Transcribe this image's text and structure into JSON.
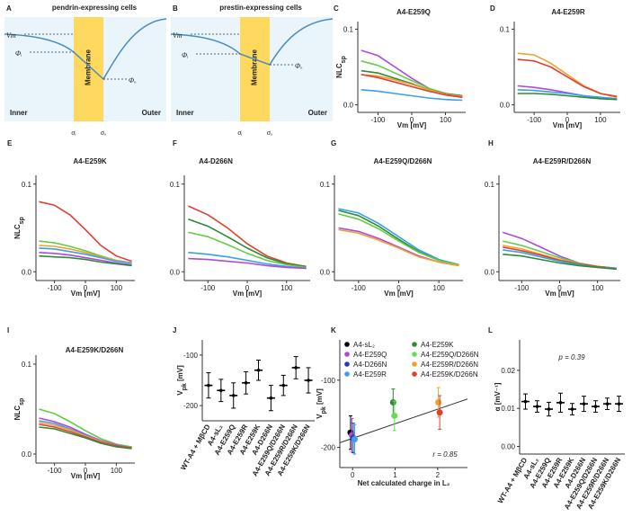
{
  "diagrams": [
    {
      "letter": "A",
      "title": "pendrin-expressing cells",
      "vm": "Vm",
      "phi_i": "Φᵢ",
      "phi_o": "Φₒ",
      "membrane": "Membrane",
      "inner": "Inner",
      "outer": "Outer",
      "sigma_i": "σᵢ",
      "sigma_o": "σₒ"
    },
    {
      "letter": "B",
      "title": "prestin-expressing cells",
      "vm": "Vm",
      "phi_i": "Φᵢ",
      "phi_o": "Φₒ",
      "membrane": "Membrane",
      "inner": "Inner",
      "outer": "Outer",
      "sigma_i": "σᵢ",
      "sigma_o": "σₒ"
    }
  ],
  "chart_data": [
    {
      "letter": "C",
      "type": "line",
      "title": "A4-E259Q",
      "ylabel": "NLC",
      "ylabel_sub": "sp",
      "xlabel": "Vm [mV]",
      "x": [
        -150,
        -100,
        -50,
        0,
        50,
        100,
        150
      ],
      "xlim": [
        -160,
        160
      ],
      "xticks": [
        -100,
        0,
        100
      ],
      "ylim": [
        -0.01,
        0.11
      ],
      "yticks": [
        {
          "value": 0,
          "label": "0.0"
        },
        {
          "value": 0.1,
          "label": "0.1"
        }
      ],
      "series": [
        {
          "color": "#b048e0",
          "values": [
            0.072,
            0.065,
            0.05,
            0.035,
            0.022,
            0.013,
            0.01
          ]
        },
        {
          "color": "#66cc44",
          "values": [
            0.058,
            0.052,
            0.042,
            0.032,
            0.022,
            0.015,
            0.012
          ]
        },
        {
          "color": "#2e8b3a",
          "values": [
            0.045,
            0.042,
            0.035,
            0.028,
            0.02,
            0.015,
            0.012
          ]
        },
        {
          "color": "#f0a030",
          "values": [
            0.04,
            0.038,
            0.033,
            0.027,
            0.02,
            0.014,
            0.011
          ]
        },
        {
          "color": "#e04030",
          "values": [
            0.04,
            0.036,
            0.03,
            0.024,
            0.018,
            0.013,
            0.01
          ]
        },
        {
          "color": "#3aa0e8",
          "values": [
            0.02,
            0.018,
            0.015,
            0.012,
            0.009,
            0.007,
            0.006
          ]
        }
      ]
    },
    {
      "letter": "D",
      "type": "line",
      "title": "A4-E259R",
      "xlabel": "Vm [mV]",
      "x": [
        -150,
        -100,
        -50,
        0,
        50,
        100,
        150
      ],
      "xlim": [
        -160,
        160
      ],
      "xticks": [
        -100,
        0,
        100
      ],
      "ylim": [
        -0.01,
        0.11
      ],
      "yticks": [
        {
          "value": 0,
          "label": "0.0"
        },
        {
          "value": 0.1,
          "label": "0.1"
        }
      ],
      "series": [
        {
          "color": "#f0a030",
          "values": [
            0.068,
            0.066,
            0.055,
            0.04,
            0.025,
            0.015,
            0.01
          ]
        },
        {
          "color": "#e04030",
          "values": [
            0.06,
            0.058,
            0.05,
            0.037,
            0.024,
            0.015,
            0.011
          ]
        },
        {
          "color": "#b048e0",
          "values": [
            0.025,
            0.023,
            0.02,
            0.016,
            0.012,
            0.009,
            0.007
          ]
        },
        {
          "color": "#3aa0e8",
          "values": [
            0.02,
            0.019,
            0.017,
            0.015,
            0.012,
            0.01,
            0.008
          ]
        },
        {
          "color": "#2e8b3a",
          "values": [
            0.015,
            0.015,
            0.014,
            0.012,
            0.01,
            0.008,
            0.007
          ]
        }
      ]
    },
    {
      "letter": "E",
      "type": "line",
      "title": "A4-E259K",
      "ylabel": "NLC",
      "ylabel_sub": "sp",
      "xlabel": "Vm [mV]",
      "x": [
        -150,
        -100,
        -50,
        0,
        50,
        100,
        150
      ],
      "xlim": [
        -160,
        160
      ],
      "xticks": [
        -100,
        0,
        100
      ],
      "ylim": [
        -0.01,
        0.11
      ],
      "yticks": [
        {
          "value": 0,
          "label": "0.0"
        },
        {
          "value": 0.1,
          "label": "0.1"
        }
      ],
      "series": [
        {
          "color": "#e04030",
          "values": [
            0.08,
            0.076,
            0.065,
            0.048,
            0.03,
            0.018,
            0.012
          ]
        },
        {
          "color": "#66cc44",
          "values": [
            0.035,
            0.033,
            0.029,
            0.024,
            0.018,
            0.013,
            0.01
          ]
        },
        {
          "color": "#f0a030",
          "values": [
            0.03,
            0.029,
            0.026,
            0.022,
            0.017,
            0.013,
            0.01
          ]
        },
        {
          "color": "#3aa0e8",
          "values": [
            0.027,
            0.026,
            0.023,
            0.02,
            0.016,
            0.012,
            0.01
          ]
        },
        {
          "color": "#b048e0",
          "values": [
            0.022,
            0.021,
            0.019,
            0.016,
            0.013,
            0.01,
            0.008
          ]
        },
        {
          "color": "#2e8b3a",
          "values": [
            0.018,
            0.017,
            0.016,
            0.014,
            0.011,
            0.009,
            0.007
          ]
        }
      ]
    },
    {
      "letter": "F",
      "type": "line",
      "title": "A4-D266N",
      "xlabel": "Vm [mV]",
      "x": [
        -150,
        -100,
        -50,
        0,
        50,
        100,
        150
      ],
      "xlim": [
        -160,
        160
      ],
      "xticks": [
        -100,
        0,
        100
      ],
      "ylim": [
        -0.01,
        0.11
      ],
      "yticks": [
        {
          "value": 0,
          "label": "0.0"
        },
        {
          "value": 0.1,
          "label": "0.1"
        }
      ],
      "series": [
        {
          "color": "#e04030",
          "values": [
            0.075,
            0.065,
            0.05,
            0.032,
            0.018,
            0.01,
            0.006
          ]
        },
        {
          "color": "#2e8b3a",
          "values": [
            0.06,
            0.052,
            0.04,
            0.027,
            0.016,
            0.009,
            0.006
          ]
        },
        {
          "color": "#66cc44",
          "values": [
            0.045,
            0.04,
            0.031,
            0.021,
            0.013,
            0.008,
            0.005
          ]
        },
        {
          "color": "#3aa0e8",
          "values": [
            0.022,
            0.02,
            0.017,
            0.013,
            0.009,
            0.006,
            0.004
          ]
        },
        {
          "color": "#b048e0",
          "values": [
            0.015,
            0.014,
            0.012,
            0.01,
            0.007,
            0.005,
            0.004
          ]
        }
      ]
    },
    {
      "letter": "G",
      "type": "line",
      "title": "A4-E259Q/D266N",
      "xlabel": "Vm [mV]",
      "x": [
        -150,
        -100,
        -50,
        0,
        50,
        100,
        150
      ],
      "xlim": [
        -160,
        160
      ],
      "xticks": [
        -100,
        0,
        100
      ],
      "ylim": [
        -0.01,
        0.11
      ],
      "yticks": [
        {
          "value": 0,
          "label": "0.0"
        },
        {
          "value": 0.1,
          "label": "0.1"
        }
      ],
      "series": [
        {
          "color": "#3aa0e8",
          "values": [
            0.072,
            0.067,
            0.055,
            0.04,
            0.025,
            0.014,
            0.008
          ]
        },
        {
          "color": "#2e8b3a",
          "values": [
            0.07,
            0.064,
            0.052,
            0.037,
            0.023,
            0.013,
            0.008
          ]
        },
        {
          "color": "#66cc44",
          "values": [
            0.066,
            0.06,
            0.049,
            0.035,
            0.022,
            0.013,
            0.008
          ]
        },
        {
          "color": "#b048e0",
          "values": [
            0.05,
            0.046,
            0.038,
            0.028,
            0.018,
            0.011,
            0.007
          ]
        },
        {
          "color": "#f0a030",
          "values": [
            0.048,
            0.044,
            0.036,
            0.027,
            0.017,
            0.011,
            0.007
          ]
        }
      ]
    },
    {
      "letter": "H",
      "type": "line",
      "title": "A4-E259R/D266N",
      "xlabel": "Vm [mV]",
      "x": [
        -150,
        -100,
        -50,
        0,
        50,
        100,
        150
      ],
      "xlim": [
        -160,
        160
      ],
      "xticks": [
        -100,
        0,
        100
      ],
      "ylim": [
        -0.01,
        0.11
      ],
      "yticks": [
        {
          "value": 0,
          "label": "0.0"
        },
        {
          "value": 0.1,
          "label": "0.1"
        }
      ],
      "series": [
        {
          "color": "#b048e0",
          "values": [
            0.045,
            0.038,
            0.028,
            0.018,
            0.01,
            0.006,
            0.004
          ]
        },
        {
          "color": "#66cc44",
          "values": [
            0.035,
            0.03,
            0.023,
            0.016,
            0.01,
            0.006,
            0.004
          ]
        },
        {
          "color": "#f0a030",
          "values": [
            0.03,
            0.026,
            0.02,
            0.014,
            0.009,
            0.006,
            0.004
          ]
        },
        {
          "color": "#e04030",
          "values": [
            0.028,
            0.024,
            0.019,
            0.013,
            0.009,
            0.006,
            0.004
          ]
        },
        {
          "color": "#3aa0e8",
          "values": [
            0.025,
            0.022,
            0.017,
            0.012,
            0.008,
            0.005,
            0.004
          ]
        },
        {
          "color": "#2e8b3a",
          "values": [
            0.02,
            0.018,
            0.014,
            0.01,
            0.007,
            0.005,
            0.003
          ]
        }
      ]
    },
    {
      "letter": "I",
      "type": "line",
      "title": "A4-E259K/D266N",
      "ylabel": "NLC",
      "ylabel_sub": "sp",
      "xlabel": "Vm [mV]",
      "x": [
        -150,
        -100,
        -50,
        0,
        50,
        100,
        150
      ],
      "xlim": [
        -160,
        160
      ],
      "xticks": [
        -100,
        0,
        100
      ],
      "ylim": [
        -0.01,
        0.11
      ],
      "yticks": [
        {
          "value": 0,
          "label": "0.0"
        },
        {
          "value": 0.1,
          "label": "0.1"
        }
      ],
      "series": [
        {
          "color": "#66cc44",
          "values": [
            0.05,
            0.045,
            0.036,
            0.026,
            0.017,
            0.011,
            0.008
          ]
        },
        {
          "color": "#b048e0",
          "values": [
            0.04,
            0.036,
            0.03,
            0.022,
            0.015,
            0.01,
            0.007
          ]
        },
        {
          "color": "#3aa0e8",
          "values": [
            0.037,
            0.034,
            0.028,
            0.021,
            0.014,
            0.009,
            0.007
          ]
        },
        {
          "color": "#f0a030",
          "values": [
            0.035,
            0.032,
            0.027,
            0.02,
            0.014,
            0.009,
            0.007
          ]
        },
        {
          "color": "#e04030",
          "values": [
            0.033,
            0.03,
            0.025,
            0.019,
            0.013,
            0.009,
            0.007
          ]
        },
        {
          "color": "#2e8b3a",
          "values": [
            0.03,
            0.028,
            0.023,
            0.018,
            0.012,
            0.008,
            0.006
          ]
        }
      ]
    },
    {
      "letter": "J",
      "type": "dot",
      "ylabel": "V",
      "ylabel_sub": "pk",
      "ylabel_unit": " [mV]",
      "categories": [
        "WT-A4 + MβCD",
        "A4-sL₂",
        "A4-E259Q",
        "A4-E259R",
        "A4-E259K",
        "A4-D266N",
        "A4-E259Q/D266N",
        "A4-E259R/D266N",
        "A4-E259K/D266N"
      ],
      "values": [
        -160,
        -170,
        -180,
        -155,
        -130,
        -185,
        -160,
        -125,
        -150
      ],
      "errors": [
        25,
        22,
        25,
        22,
        20,
        25,
        20,
        22,
        25
      ],
      "color": "#000000",
      "ylim": [
        -230,
        -70
      ],
      "yticks": [
        -200,
        -100
      ]
    },
    {
      "letter": "K",
      "type": "scatter",
      "ylabel": "V",
      "ylabel_sub": "pk",
      "ylabel_unit": " [mV]",
      "xlabel": "Net calculated charge in L₂",
      "xlim": [
        -0.3,
        2.7
      ],
      "xticks": [
        0,
        1,
        2
      ],
      "ylim": [
        -230,
        -40
      ],
      "yticks": [
        -200,
        -100
      ],
      "series": [
        {
          "name": "A4-sL₂",
          "color": "#000000",
          "x": [
            0
          ],
          "values": [
            -178
          ],
          "errors": [
            25
          ]
        },
        {
          "name": "A4-E259Q",
          "color": "#b048e0",
          "x": [
            0
          ],
          "values": [
            -182
          ],
          "errors": [
            25
          ]
        },
        {
          "name": "A4-D266N",
          "color": "#2a3bb0",
          "x": [
            0
          ],
          "values": [
            -186
          ],
          "errors": [
            22
          ]
        },
        {
          "name": "A4-E259R",
          "color": "#3aa0e8",
          "x": [
            0
          ],
          "values": [
            -188
          ],
          "errors": [
            22
          ]
        },
        {
          "name": "A4-E259K",
          "color": "#2e8b3a",
          "x": [
            1
          ],
          "values": [
            -133
          ],
          "errors": [
            20
          ]
        },
        {
          "name": "A4-E259Q/D266N",
          "color": "#66dd55",
          "x": [
            1
          ],
          "values": [
            -153
          ],
          "errors": [
            22
          ]
        },
        {
          "name": "A4-E259R/D266N",
          "color": "#f0a030",
          "x": [
            2
          ],
          "values": [
            -133
          ],
          "errors": [
            22
          ]
        },
        {
          "name": "A4-E259K/D266N",
          "color": "#e04030",
          "x": [
            2
          ],
          "values": [
            -148
          ],
          "errors": [
            25
          ]
        }
      ],
      "trendline": {
        "x": [
          -0.3,
          2.7
        ],
        "y": [
          -193,
          -128
        ]
      },
      "annotation": "r = 0.85"
    },
    {
      "letter": "L",
      "type": "dot",
      "ylabel": "α [mV⁻¹]",
      "categories": [
        "WT-A4 + MβCD",
        "A4-sL₂",
        "A4-E259Q",
        "A4-E259R",
        "A4-E259K",
        "A4-D266N",
        "A4-E259Q/D266N",
        "A4-E259R/D266N",
        "A4-E259K/D266N"
      ],
      "values": [
        0.0118,
        0.0105,
        0.0098,
        0.0115,
        0.0098,
        0.0112,
        0.0105,
        0.0112,
        0.0112
      ],
      "errors": [
        0.002,
        0.0015,
        0.0018,
        0.0025,
        0.0015,
        0.002,
        0.0015,
        0.0015,
        0.002
      ],
      "color": "#000000",
      "ylim": [
        -0.002,
        0.028
      ],
      "yticks": [
        {
          "value": 0,
          "label": "0.00"
        },
        {
          "value": 0.01,
          "label": "0.01"
        },
        {
          "value": 0.02,
          "label": "0.02"
        }
      ],
      "annotation": "p = 0.39"
    }
  ]
}
